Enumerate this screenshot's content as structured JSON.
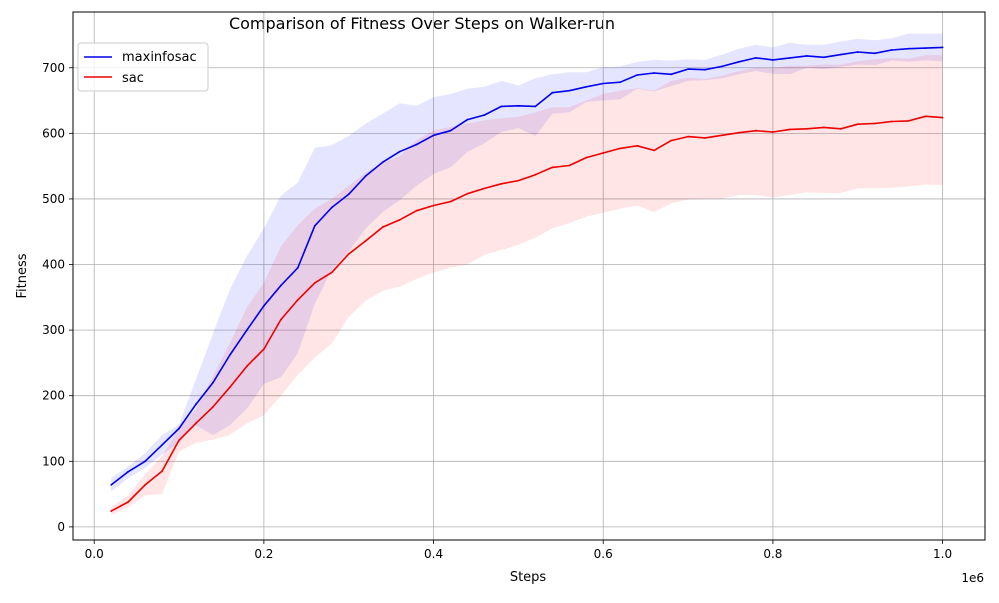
{
  "chart_data": {
    "type": "line",
    "title": "Comparison of Fitness Over Steps on Walker-run",
    "xlabel": "Steps",
    "ylabel": "Fitness",
    "x_offset_label": "1e6",
    "xlim": [
      -25000,
      1050000
    ],
    "ylim": [
      -20,
      785
    ],
    "x_ticks": [
      0,
      200000,
      400000,
      600000,
      800000,
      1000000
    ],
    "x_tick_labels": [
      "0.0",
      "0.2",
      "0.4",
      "0.6",
      "0.8",
      "1.0"
    ],
    "y_ticks": [
      0,
      100,
      200,
      300,
      400,
      500,
      600,
      700
    ],
    "y_tick_labels": [
      "0",
      "100",
      "200",
      "300",
      "400",
      "500",
      "600",
      "700"
    ],
    "grid": true,
    "legend_position": "top-left",
    "x": [
      20000,
      40000,
      60000,
      80000,
      100000,
      120000,
      140000,
      160000,
      180000,
      200000,
      220000,
      240000,
      260000,
      280000,
      300000,
      320000,
      340000,
      360000,
      380000,
      400000,
      420000,
      440000,
      460000,
      480000,
      500000,
      520000,
      540000,
      560000,
      580000,
      600000,
      620000,
      640000,
      660000,
      680000,
      700000,
      720000,
      740000,
      760000,
      780000,
      800000,
      820000,
      840000,
      860000,
      880000,
      900000,
      920000,
      940000,
      960000,
      980000,
      1000000
    ],
    "series": [
      {
        "name": "maxinfosac",
        "color": "#0000ee",
        "band_color": "#0000ff",
        "values": [
          64,
          84,
          100,
          125,
          150,
          187,
          220,
          262,
          300,
          337,
          368,
          395,
          459,
          487,
          507,
          535,
          556,
          572,
          583,
          597,
          604,
          621,
          628,
          641,
          642,
          641,
          662,
          665,
          671,
          676,
          678,
          689,
          692,
          690,
          698,
          697,
          702,
          709,
          715,
          712,
          715,
          718,
          716,
          720,
          724,
          722,
          727,
          729,
          730,
          731
        ],
        "lower": [
          54,
          74,
          90,
          110,
          128,
          155,
          140,
          155,
          180,
          218,
          228,
          265,
          340,
          392,
          420,
          455,
          480,
          498,
          520,
          538,
          548,
          572,
          585,
          602,
          608,
          596,
          630,
          632,
          648,
          650,
          652,
          668,
          664,
          672,
          680,
          681,
          684,
          690,
          695,
          691,
          690,
          700,
          698,
          701,
          705,
          704,
          711,
          709,
          711,
          710
        ],
        "upper": [
          74,
          92,
          112,
          140,
          156,
          225,
          295,
          362,
          413,
          455,
          505,
          525,
          578,
          582,
          596,
          615,
          630,
          646,
          642,
          655,
          660,
          668,
          671,
          680,
          673,
          684,
          690,
          693,
          693,
          701,
          702,
          709,
          712,
          711,
          713,
          712,
          720,
          729,
          735,
          731,
          738,
          735,
          735,
          740,
          744,
          742,
          745,
          752,
          752,
          752
        ]
      },
      {
        "name": "sac",
        "color": "#ee0000",
        "band_color": "#ff0000",
        "values": [
          24,
          38,
          64,
          85,
          132,
          158,
          183,
          213,
          245,
          271,
          316,
          346,
          372,
          388,
          416,
          436,
          457,
          468,
          482,
          490,
          496,
          508,
          516,
          523,
          528,
          537,
          548,
          551,
          563,
          570,
          577,
          581,
          574,
          589,
          595,
          593,
          597,
          601,
          604,
          602,
          606,
          607,
          609,
          607,
          614,
          615,
          618,
          619,
          626,
          624
        ],
        "lower": [
          18,
          30,
          48,
          50,
          115,
          128,
          133,
          140,
          158,
          170,
          200,
          232,
          258,
          280,
          320,
          345,
          360,
          366,
          378,
          388,
          395,
          400,
          415,
          422,
          430,
          441,
          455,
          463,
          473,
          479,
          485,
          490,
          480,
          493,
          499,
          500,
          500,
          506,
          506,
          502,
          506,
          510,
          509,
          509,
          516,
          516,
          517,
          519,
          522,
          521
        ],
        "upper": [
          30,
          48,
          80,
          108,
          150,
          180,
          230,
          280,
          335,
          372,
          428,
          460,
          485,
          500,
          520,
          540,
          555,
          565,
          590,
          604,
          610,
          615,
          620,
          623,
          625,
          632,
          640,
          640,
          650,
          660,
          665,
          669,
          665,
          680,
          685,
          683,
          688,
          695,
          700,
          700,
          703,
          703,
          705,
          705,
          710,
          713,
          715,
          714,
          719,
          720
        ]
      }
    ]
  }
}
